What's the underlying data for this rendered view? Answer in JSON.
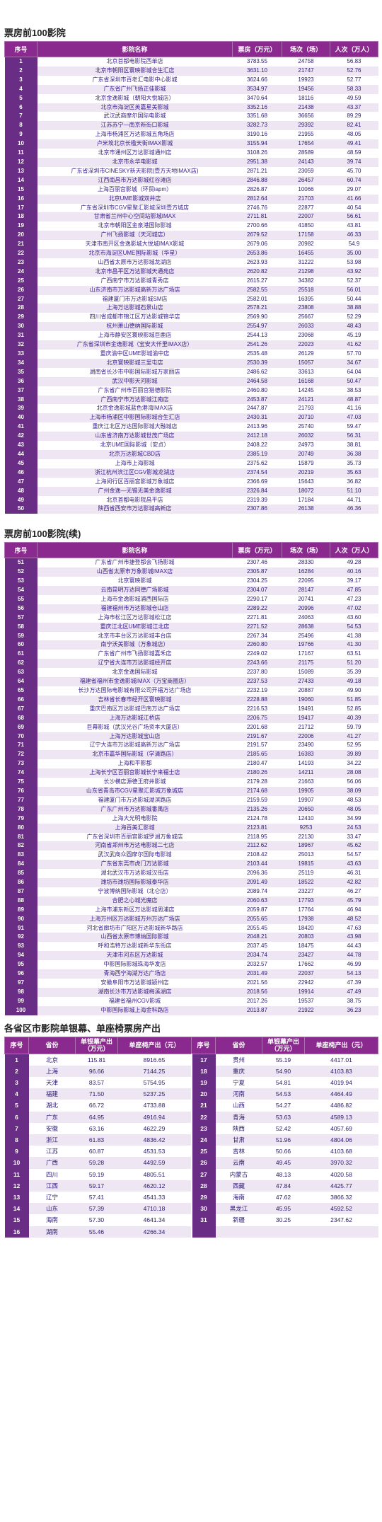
{
  "table1": {
    "title": "票房前100影院",
    "headers": [
      "序号",
      "影院名称",
      "票房（万元）",
      "场次（场）",
      "人次（万人）"
    ],
    "rows": [
      [
        "1",
        "北京首都电影院西单店",
        "3783.55",
        "24758",
        "56.83"
      ],
      [
        "2",
        "北京市朝阳区寰映影城合生汇店",
        "3631.10",
        "21747",
        "52.76"
      ],
      [
        "3",
        "广东省深圳市百老汇电影中心影城",
        "3624.66",
        "19923",
        "52.77"
      ],
      [
        "4",
        "广东省广州飞扬正佳影城",
        "3534.97",
        "19456",
        "58.33"
      ],
      [
        "5",
        "北京金逸影城（朝阳大悦城店）",
        "3470.64",
        "18116",
        "49.59"
      ],
      [
        "6",
        "北京市海淀区英嘉星美影城",
        "3352.16",
        "21438",
        "43.37"
      ],
      [
        "7",
        "武汉武商摩尔国际电影城",
        "3351.68",
        "36656",
        "89.29"
      ],
      [
        "8",
        "江苏苏宁—南京新街口影城",
        "3282.73",
        "29392",
        "82.41"
      ],
      [
        "9",
        "上海市杨浦区万达影城五角场店",
        "3190.16",
        "21955",
        "48.05"
      ],
      [
        "10",
        "卢米埃北京长楹天街IMAX影城",
        "3155.94",
        "17654",
        "49.41"
      ],
      [
        "11",
        "北京市通州区万达影城通州店",
        "3108.26",
        "28589",
        "48.59"
      ],
      [
        "12",
        "北京市永华电影城",
        "2951.38",
        "24143",
        "39.74"
      ],
      [
        "13",
        "广东省深圳市CINESKY新天影院(壹方天地IMAX店)",
        "2871.21",
        "23059",
        "45.70"
      ],
      [
        "14",
        "江西南昌市万达影城红谷滩店",
        "2846.88",
        "26457",
        "60.74"
      ],
      [
        "15",
        "上海百丽宫影城（环贸iapm）",
        "2826.87",
        "10066",
        "29.07"
      ],
      [
        "16",
        "北京UME影城双井店",
        "2812.64",
        "21703",
        "41.66"
      ],
      [
        "17",
        "广东省深圳市CGV星聚汇影城深圳壹方城店",
        "2746.76",
        "22877",
        "40.54"
      ],
      [
        "18",
        "甘肃省兰州中心空间站影城IMAX",
        "2711.81",
        "22007",
        "56.61"
      ],
      [
        "19",
        "北京市朝阳区金泉港国际影城",
        "2700.66",
        "41850",
        "43.81"
      ],
      [
        "20",
        "广州飞扬影城（天河城店）",
        "2679.52",
        "17158",
        "46.33"
      ],
      [
        "21",
        "天津市南开区金逸影城大悦城IMAX影城",
        "2679.06",
        "20982",
        "54.9"
      ],
      [
        "22",
        "北京市海淀区UME国际影城（华星）",
        "2653.86",
        "16455",
        "35.00"
      ],
      [
        "23",
        "山西省太原市万达影城龙湖店",
        "2623.93",
        "31222",
        "53.98"
      ],
      [
        "24",
        "北京市昌平区万达影城天通苑店",
        "2620.82",
        "21298",
        "43.92"
      ],
      [
        "25",
        "广西南宁市万达影城青秀店",
        "2615.27",
        "34382",
        "52.37"
      ],
      [
        "26",
        "山东济南市万达影城高新万达广场店",
        "2582.55",
        "25518",
        "56.01"
      ],
      [
        "27",
        "福建厦门市万达影城SM店",
        "2582.01",
        "16395",
        "50.44"
      ],
      [
        "28",
        "上海万达影城石景山店",
        "2578.21",
        "23808",
        "38.88"
      ],
      [
        "29",
        "四川省成都市锦江区万达影城锦华店",
        "2569.90",
        "25667",
        "52.29"
      ],
      [
        "30",
        "杭州萧山德纳国际影城",
        "2554.97",
        "26033",
        "48.43"
      ],
      [
        "31",
        "上海市静安区寰映影城巨鹿店",
        "2544.13",
        "23068",
        "45.19"
      ],
      [
        "32",
        "广东省深圳市金逸影城（宝安大仟里IMAX店）",
        "2541.26",
        "22023",
        "41.62"
      ],
      [
        "33",
        "重庆渝中区UME影城渝中店",
        "2535.48",
        "26129",
        "57.70"
      ],
      [
        "34",
        "北京寰映影城三里屯店",
        "2530.39",
        "15057",
        "34.67"
      ],
      [
        "35",
        "湖南省长沙市中影国际影城万家丽店",
        "2486.62",
        "33613",
        "64.04"
      ],
      [
        "36",
        "武汉中影天河影城",
        "2464.58",
        "16168",
        "50.47"
      ],
      [
        "37",
        "广东省广州市百丽宫猎德影院",
        "2460.80",
        "14245",
        "38.53"
      ],
      [
        "38",
        "广西南宁市万达影城江南店",
        "2453.87",
        "24121",
        "48.87"
      ],
      [
        "39",
        "北京金逸影城蓝色港湾IMAX店",
        "2447.87",
        "21793",
        "41.16"
      ],
      [
        "40",
        "上海市杨浦区中影国际影城合生汇店",
        "2430.31",
        "20710",
        "47.03"
      ],
      [
        "41",
        "重庆江北区万达国际影城大融城店",
        "2413.96",
        "25740",
        "59.47"
      ],
      [
        "42",
        "山东省济南万达影城世茂广场店",
        "2412.18",
        "26032",
        "56.31"
      ],
      [
        "43",
        "北京UME国际影城（安贞）",
        "2408.22",
        "24973",
        "38.81"
      ],
      [
        "44",
        "北京万达影城CBD店",
        "2385.19",
        "20749",
        "36.38"
      ],
      [
        "45",
        "上海市上海影城",
        "2375.62",
        "15879",
        "35.73"
      ],
      [
        "46",
        "浙江杭州滨江区CGV影城龙湖店",
        "2374.54",
        "20219",
        "35.63"
      ],
      [
        "47",
        "上海闵行区百丽宫影城万象城店",
        "2366.69",
        "15643",
        "36.82"
      ],
      [
        "48",
        "广州金逸—无锡无美金逸影城",
        "2326.84",
        "18072",
        "51.10"
      ],
      [
        "49",
        "北京首都电影院昌平店",
        "2319.39",
        "17184",
        "44.71"
      ],
      [
        "50",
        "陕西省西安市万达影城高新店",
        "2307.86",
        "26138",
        "46.36"
      ]
    ]
  },
  "table2": {
    "title": "票房前100影院(续)",
    "headers": [
      "序号",
      "影院名称",
      "票房（万元）",
      "场次（场）",
      "人次（万人）"
    ],
    "rows": [
      [
        "51",
        "广东省广州市捷登都会飞扬影城",
        "2307.46",
        "28330",
        "49.28"
      ],
      [
        "52",
        "山西省太原市万象影城IMAX店",
        "2305.87",
        "16284",
        "40.16"
      ],
      [
        "53",
        "北京寰映影城",
        "2304.25",
        "22095",
        "39.17"
      ],
      [
        "54",
        "云南昆明万达同德广场影城",
        "2304.07",
        "28147",
        "47.85"
      ],
      [
        "55",
        "上海市金逸影城浦西国际店",
        "2290.17",
        "20741",
        "47.23"
      ],
      [
        "56",
        "福建福州市万达影城仓山店",
        "2289.22",
        "20996",
        "47.02"
      ],
      [
        "57",
        "上海市松江区万达影城松江店",
        "2271.81",
        "24063",
        "43.60"
      ],
      [
        "58",
        "重庆江北区UME影城江北店",
        "2271.52",
        "28638",
        "54.53"
      ],
      [
        "59",
        "北京市丰台区万达影城丰台店",
        "2267.34",
        "25496",
        "41.38"
      ],
      [
        "60",
        "南宁沃美影城（万象城店）",
        "2260.80",
        "19766",
        "41.30"
      ],
      [
        "61",
        "广东省广州市飞扬影城嘉禾店",
        "2249.02",
        "17167",
        "63.51"
      ],
      [
        "62",
        "辽宁省大连市万达影城经开店",
        "2243.66",
        "21175",
        "51.20"
      ],
      [
        "63",
        "北京金逸国际影城",
        "2237.80",
        "15089",
        "35.39"
      ],
      [
        "64",
        "福建省福州市金逸影城IMAX（万宝商圈店）",
        "2237.53",
        "27433",
        "49.18"
      ],
      [
        "65",
        "长沙万达国际电影城有限公司开福万达广场店",
        "2232.19",
        "20887",
        "49.90"
      ],
      [
        "66",
        "吉林省长春市经开区寰映影城",
        "2228.88",
        "19060",
        "51.85"
      ],
      [
        "67",
        "重庆巴南区万达影城巴南万达广场店",
        "2216.53",
        "19491",
        "52.85"
      ],
      [
        "68",
        "上海万达影城江桥店",
        "2206.75",
        "19417",
        "40.39"
      ],
      [
        "69",
        "巨幕影城（武汉光谷广场资本大厦店）",
        "2201.68",
        "21712",
        "59.79"
      ],
      [
        "70",
        "上海万达影城宝山店",
        "2191.67",
        "22006",
        "41.27"
      ],
      [
        "71",
        "辽宁大连市万达影城高新万达广场店",
        "2191.57",
        "23490",
        "52.95"
      ],
      [
        "72",
        "北京市嘉华国际影城（学清路店）",
        "2185.65",
        "16383",
        "39.89"
      ],
      [
        "73",
        "上海和平影都",
        "2180.47",
        "14193",
        "34.22"
      ],
      [
        "74",
        "上海长宁区百丽宫影城长宁来福士店",
        "2180.26",
        "14211",
        "28.08"
      ],
      [
        "75",
        "长沙横店源德王府井影城",
        "2179.28",
        "21663",
        "56.06"
      ],
      [
        "76",
        "山东省青岛市CGV星聚汇影城万象城店",
        "2174.68",
        "19905",
        "38.09"
      ],
      [
        "77",
        "福建厦门市万达影城湖滨路店",
        "2159.59",
        "19907",
        "48.53"
      ],
      [
        "78",
        "广东广州市万达影城番禺店",
        "2135.26",
        "20650",
        "48.05"
      ],
      [
        "79",
        "上海大光明电影院",
        "2124.78",
        "12410",
        "34.99"
      ],
      [
        "80",
        "上海百美汇影城",
        "2123.81",
        "9253",
        "24.53"
      ],
      [
        "81",
        "广东省深圳市百丽宫影城罗湖万象城店",
        "2118.95",
        "22130",
        "33.47"
      ],
      [
        "82",
        "河南省郑州市万达电影城二七店",
        "2112.62",
        "18967",
        "45.62"
      ],
      [
        "83",
        "武汉武商众圆摩尔国际电影城",
        "2108.42",
        "25013",
        "54.57"
      ],
      [
        "84",
        "广东省东莞市虎门万达影城",
        "2103.44",
        "19815",
        "43.63"
      ],
      [
        "85",
        "湖北武汉市万达影城汉街店",
        "2096.36",
        "25119",
        "46.31"
      ],
      [
        "86",
        "潍坊市潍坊国际影城泰华店",
        "2091.49",
        "18522",
        "42.82"
      ],
      [
        "87",
        "宁波博纳国际影城（北仑店）",
        "2089.74",
        "23227",
        "46.27"
      ],
      [
        "88",
        "合肥之心城光魔店",
        "2060.63",
        "17793",
        "45.79"
      ],
      [
        "89",
        "上海市浦东新区万达影城周浦店",
        "2059.87",
        "17764",
        "46.94"
      ],
      [
        "90",
        "上海万州区万达影城万州万达广场店",
        "2055.65",
        "17938",
        "48.52"
      ],
      [
        "91",
        "河北省廊坊市广阳区万达影城新华路店",
        "2055.45",
        "18420",
        "47.63"
      ],
      [
        "92",
        "山西省太原市博纳国际影城",
        "2048.21",
        "20803",
        "43.98"
      ],
      [
        "93",
        "呼和浩特万达影城新华东街店",
        "2037.45",
        "18475",
        "44.43"
      ],
      [
        "94",
        "天津市河东区万达影城",
        "2034.74",
        "23427",
        "44.78"
      ],
      [
        "95",
        "中影国际影城珠海华发店",
        "2032.57",
        "17662",
        "46.99"
      ],
      [
        "96",
        "青海西宁海湖万达广场店",
        "2031.49",
        "22037",
        "54.13"
      ],
      [
        "97",
        "安徽阜阳市万达影城颍州店",
        "2021.56",
        "22942",
        "47.39"
      ],
      [
        "98",
        "湖南长沙市万达影城梅溪湖店",
        "2018.56",
        "19914",
        "47.49"
      ],
      [
        "99",
        "福建省福州CGV影城",
        "2017.26",
        "19537",
        "38.75"
      ],
      [
        "100",
        "中影国际影城上海金科路店",
        "2013.87",
        "21922",
        "36.23"
      ]
    ]
  },
  "table3": {
    "title": "各省区市影院单银幕、单座椅票房产出",
    "headers": [
      "序号",
      "省份",
      "单银幕产出（万元）",
      "单座椅产出（元）",
      "序号",
      "省份",
      "单银幕产出（万元）",
      "单座椅产出（元）"
    ],
    "rows": [
      [
        "1",
        "北京",
        "115.81",
        "8916.65",
        "17",
        "贵州",
        "55.19",
        "4417.01"
      ],
      [
        "2",
        "上海",
        "96.66",
        "7144.25",
        "18",
        "重庆",
        "54.90",
        "4103.83"
      ],
      [
        "3",
        "天津",
        "83.57",
        "5754.95",
        "19",
        "宁夏",
        "54.81",
        "4019.94"
      ],
      [
        "4",
        "福建",
        "71.50",
        "5237.25",
        "20",
        "河南",
        "54.53",
        "4464.49"
      ],
      [
        "5",
        "湖北",
        "66.72",
        "4733.88",
        "21",
        "山西",
        "54.27",
        "4486.82"
      ],
      [
        "6",
        "广东",
        "64.95",
        "4916.94",
        "22",
        "青海",
        "53.63",
        "4589.13"
      ],
      [
        "7",
        "安徽",
        "63.16",
        "4622.29",
        "23",
        "陕西",
        "52.42",
        "4057.69"
      ],
      [
        "8",
        "浙江",
        "61.83",
        "4836.42",
        "24",
        "甘肃",
        "51.96",
        "4804.06"
      ],
      [
        "9",
        "江苏",
        "60.87",
        "4531.53",
        "25",
        "吉林",
        "50.66",
        "4103.68"
      ],
      [
        "10",
        "广西",
        "59.28",
        "4492.59",
        "26",
        "云南",
        "49.45",
        "3970.32"
      ],
      [
        "11",
        "四川",
        "59.19",
        "4805.51",
        "27",
        "内蒙古",
        "48.13",
        "4020.58"
      ],
      [
        "12",
        "江西",
        "59.17",
        "4620.12",
        "28",
        "西藏",
        "47.84",
        "4425.77"
      ],
      [
        "13",
        "辽宁",
        "57.41",
        "4541.33",
        "29",
        "海南",
        "47.62",
        "3866.32"
      ],
      [
        "14",
        "山东",
        "57.39",
        "4710.18",
        "30",
        "黑龙江",
        "45.95",
        "4592.52"
      ],
      [
        "15",
        "海南",
        "57.30",
        "4641.34",
        "31",
        "新疆",
        "30.25",
        "2347.62"
      ],
      [
        "16",
        "湖南",
        "55.46",
        "4266.34",
        "",
        "",
        "",
        ""
      ]
    ]
  }
}
